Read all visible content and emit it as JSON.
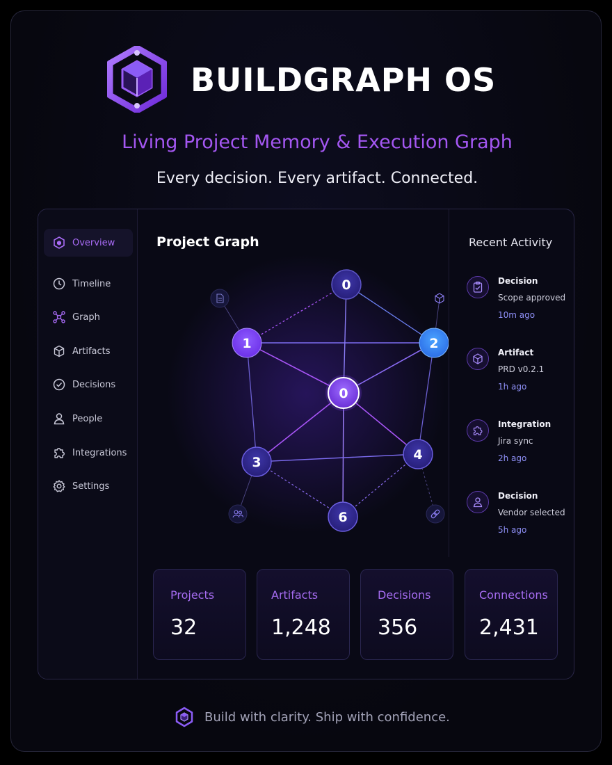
{
  "brand": {
    "name": "BUILDGRAPH OS",
    "logo_icon": "hexagon-cube-logo-icon"
  },
  "tagline": "Living Project Memory & Execution Graph",
  "subline": "Every decision. Every artifact. Connected.",
  "colors": {
    "accent": "#a457f2",
    "node_purple": "#7c3aed",
    "node_blue": "#3b82f6",
    "node_dark": "#2e2888",
    "time": "#8f90f7"
  },
  "sidebar": {
    "items": [
      {
        "label": "Overview",
        "icon": "hexagon-icon",
        "active": true
      },
      {
        "label": "Timeline",
        "icon": "clock-icon",
        "active": false
      },
      {
        "label": "Graph",
        "icon": "graph-icon",
        "active": false
      },
      {
        "label": "Artifacts",
        "icon": "cube-icon",
        "active": false
      },
      {
        "label": "Decisions",
        "icon": "check-circle-icon",
        "active": false
      },
      {
        "label": "People",
        "icon": "person-icon",
        "active": false
      },
      {
        "label": "Integrations",
        "icon": "puzzle-icon",
        "active": false
      },
      {
        "label": "Settings",
        "icon": "gear-icon",
        "active": false
      }
    ]
  },
  "graph": {
    "title": "Project Graph",
    "nodes": [
      {
        "id": "top",
        "label": "0"
      },
      {
        "id": "left",
        "label": "1"
      },
      {
        "id": "right",
        "label": "2"
      },
      {
        "id": "center",
        "label": "0"
      },
      {
        "id": "bottom-left",
        "label": "3"
      },
      {
        "id": "bottom-right",
        "label": "4"
      },
      {
        "id": "bottom",
        "label": "6"
      }
    ],
    "side_icons": [
      "document-icon",
      "cube-icon",
      "people-icon",
      "link-icon"
    ]
  },
  "activity": {
    "title": "Recent Activity",
    "items": [
      {
        "type": "Decision",
        "desc": "Scope approved",
        "time": "10m ago",
        "icon": "clipboard-check-icon"
      },
      {
        "type": "Artifact",
        "desc": "PRD v0.2.1",
        "time": "1h ago",
        "icon": "cube-icon"
      },
      {
        "type": "Integration",
        "desc": "Jira sync",
        "time": "2h ago",
        "icon": "puzzle-icon"
      },
      {
        "type": "Decision",
        "desc": "Vendor selected",
        "time": "5h ago",
        "icon": "person-icon"
      }
    ]
  },
  "stats": [
    {
      "label": "Projects",
      "value": "32"
    },
    {
      "label": "Artifacts",
      "value": "1,248"
    },
    {
      "label": "Decisions",
      "value": "356"
    },
    {
      "label": "Connections",
      "value": "2,431"
    }
  ],
  "footer": {
    "text": "Build with clarity. Ship with confidence.",
    "icon": "hexagon-cube-small-icon"
  }
}
